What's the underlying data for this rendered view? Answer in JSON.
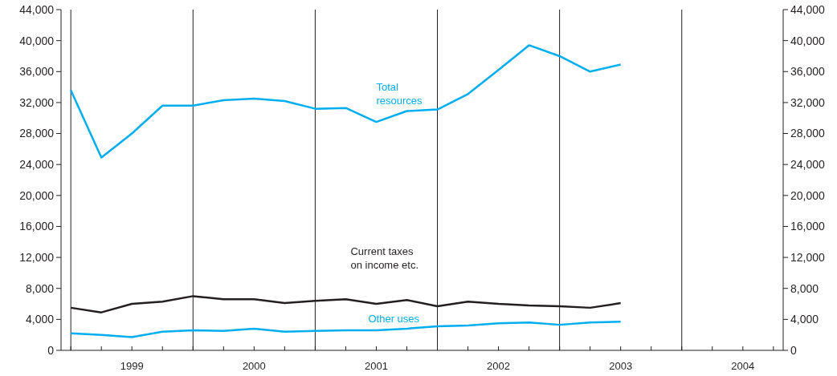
{
  "chart_data": {
    "type": "line",
    "x": [
      1998.5,
      1998.75,
      1999.0,
      1999.25,
      1999.5,
      1999.75,
      2000.0,
      2000.25,
      2000.5,
      2000.75,
      2001.0,
      2001.25,
      2001.5,
      2001.75,
      2002.0,
      2002.25,
      2002.5,
      2002.75,
      2003.0
    ],
    "series": [
      {
        "name": "Total\nresources",
        "color": "#00aeef",
        "values": [
          33600,
          24900,
          28000,
          31600,
          31600,
          32300,
          32500,
          32200,
          31200,
          31300,
          29500,
          30900,
          31100,
          33100,
          36200,
          39400,
          38000,
          36000,
          36900
        ]
      },
      {
        "name": "Current taxes\non income etc.",
        "color": "#231f20",
        "values": [
          5500,
          4900,
          6000,
          6300,
          7000,
          6600,
          6600,
          6100,
          6400,
          6600,
          6000,
          6500,
          5700,
          6300,
          6000,
          5800,
          5700,
          5500,
          6100
        ]
      },
      {
        "name": "Other uses",
        "color": "#00aeef",
        "values": [
          2200,
          2000,
          1700,
          2400,
          2600,
          2500,
          2800,
          2400,
          2500,
          2600,
          2600,
          2800,
          3100,
          3200,
          3500,
          3600,
          3300,
          3600,
          3700
        ]
      }
    ],
    "xlim": [
      1998.42,
      2004.33
    ],
    "xticks": [
      {
        "value": 1998.5,
        "label": null
      },
      {
        "value": 1998.75,
        "label": null
      },
      1999,
      {
        "value": 1999.25,
        "label": null
      },
      {
        "value": 1999.5,
        "label": null
      },
      {
        "value": 1999.75,
        "label": null
      },
      2000,
      {
        "value": 2000.25,
        "label": null
      },
      {
        "value": 2000.5,
        "label": null
      },
      {
        "value": 2000.75,
        "label": null
      },
      2001,
      {
        "value": 2001.25,
        "label": null
      },
      {
        "value": 2001.5,
        "label": null
      },
      {
        "value": 2001.75,
        "label": null
      },
      2002,
      {
        "value": 2002.25,
        "label": null
      },
      {
        "value": 2002.5,
        "label": null
      },
      {
        "value": 2002.75,
        "label": null
      },
      2003,
      {
        "value": 2003.25,
        "label": null
      },
      {
        "value": 2003.5,
        "label": null
      },
      {
        "value": 2003.75,
        "label": null
      },
      2004,
      {
        "value": 2004.25,
        "label": null
      }
    ],
    "ylim": [
      0,
      44000
    ],
    "yticks": [
      0,
      {
        "value": 4000,
        "label": "4,000"
      },
      {
        "value": 8000,
        "label": "8,000"
      },
      {
        "value": 12000,
        "label": "12,000"
      },
      {
        "value": 16000,
        "label": "16,000"
      },
      {
        "value": 20000,
        "label": "20,000"
      },
      {
        "value": 24000,
        "label": "24,000"
      },
      {
        "value": 28000,
        "label": "28,000"
      },
      {
        "value": 32000,
        "label": "32,000"
      },
      {
        "value": 36000,
        "label": "36,000"
      },
      {
        "value": 40000,
        "label": "40,000"
      },
      {
        "value": 44000,
        "label": "44,000"
      }
    ],
    "y2lim": [
      0,
      44000
    ],
    "y2ticks": [
      0,
      {
        "value": 4000,
        "label": "4,000"
      },
      {
        "value": 8000,
        "label": "8,000"
      },
      {
        "value": 12000,
        "label": "12,000"
      },
      {
        "value": 16000,
        "label": "16,000"
      },
      {
        "value": 20000,
        "label": "20,000"
      },
      {
        "value": 24000,
        "label": "24,000"
      },
      {
        "value": 28000,
        "label": "28,000"
      },
      {
        "value": 32000,
        "label": "32,000"
      },
      {
        "value": 36000,
        "label": "36,000"
      },
      {
        "value": 40000,
        "label": "40,000"
      },
      {
        "value": 44000,
        "label": "44,000"
      }
    ],
    "ref_lines": [
      {
        "axis": "x",
        "value": 1998.5,
        "color": "#231f20"
      },
      {
        "axis": "x",
        "value": 1999.5,
        "color": "#231f20"
      },
      {
        "axis": "x",
        "value": 2000.5,
        "color": "#231f20"
      },
      {
        "axis": "x",
        "value": 2001.5,
        "color": "#231f20"
      },
      {
        "axis": "x",
        "value": 2002.5,
        "color": "#231f20"
      },
      {
        "axis": "x",
        "value": 2003.5,
        "color": "#231f20"
      }
    ],
    "marker": "none",
    "line_style": "solid",
    "grid": false,
    "legend": false
  }
}
